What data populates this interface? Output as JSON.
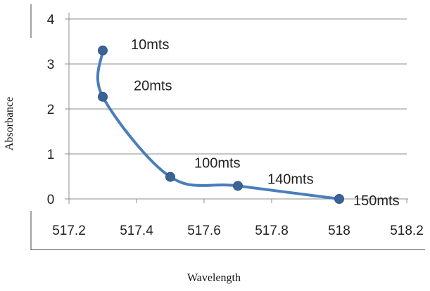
{
  "chart_data": {
    "type": "line",
    "xlabel": "Wavelength",
    "ylabel": "Absorbance",
    "xlim": [
      517.2,
      518.2
    ],
    "ylim": [
      0,
      4
    ],
    "xticks": [
      517.2,
      517.4,
      517.6,
      517.8,
      518,
      518.2
    ],
    "yticks": [
      0,
      1,
      2,
      3,
      4
    ],
    "grid": "horizontal",
    "series": [
      {
        "color": "#4a7ebb",
        "marker_color": "#3a6496",
        "smooth": true,
        "points": [
          {
            "x": 517.3,
            "y": 3.3,
            "label": "10mts"
          },
          {
            "x": 517.3,
            "y": 2.27,
            "label": "20mts"
          },
          {
            "x": 517.5,
            "y": 0.49,
            "label": "100mts"
          },
          {
            "x": 517.7,
            "y": 0.29,
            "label": "140mts"
          },
          {
            "x": 518.0,
            "y": 0.0,
            "label": "150mts"
          }
        ]
      }
    ]
  }
}
